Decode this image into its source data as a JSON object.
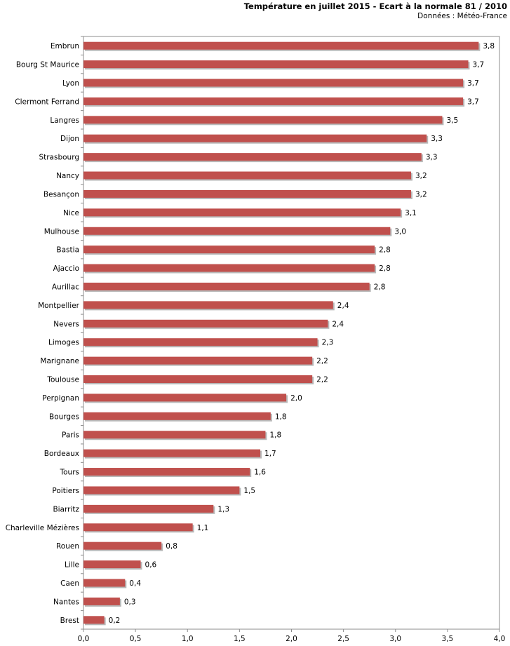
{
  "header": {
    "title": "Température en juillet 2015 - Ecart à la normale 81 / 2010",
    "subtitle": "Données : Météo-France"
  },
  "colors": {
    "bar": "#c0504d",
    "bar_shadow": "#b8b8b8",
    "axis": "#8c8c8c",
    "grid": "#d0d0d0"
  },
  "chart_data": {
    "type": "bar",
    "orientation": "horizontal",
    "title": "Température en juillet 2015 - Ecart à la normale 81 / 2010",
    "subtitle": "Données : Météo-France",
    "categories": [
      "Embrun",
      "Bourg St Maurice",
      "Lyon",
      "Clermont Ferrand",
      "Langres",
      "Dijon",
      "Strasbourg",
      "Nancy",
      "Besançon",
      "Nice",
      "Mulhouse",
      "Bastia",
      "Ajaccio",
      "Aurillac",
      "Montpellier",
      "Nevers",
      "Limoges",
      "Marignane",
      "Toulouse",
      "Perpignan",
      "Bourges",
      "Paris",
      "Bordeaux",
      "Tours",
      "Poitiers",
      "Biarritz",
      "Charleville Mézières",
      "Rouen",
      "Lille",
      "Caen",
      "Nantes",
      "Brest"
    ],
    "values": [
      3.8,
      3.7,
      3.65,
      3.65,
      3.45,
      3.3,
      3.25,
      3.15,
      3.15,
      3.05,
      2.95,
      2.8,
      2.8,
      2.75,
      2.4,
      2.35,
      2.25,
      2.2,
      2.2,
      1.95,
      1.8,
      1.75,
      1.7,
      1.6,
      1.5,
      1.25,
      1.05,
      0.75,
      0.55,
      0.4,
      0.35,
      0.2
    ],
    "value_labels": [
      "3,8",
      "3,7",
      "3,7",
      "3,7",
      "3,5",
      "3,3",
      "3,3",
      "3,2",
      "3,2",
      "3,1",
      "3,0",
      "2,8",
      "2,8",
      "2,8",
      "2,4",
      "2,4",
      "2,3",
      "2,2",
      "2,2",
      "2,0",
      "1,8",
      "1,8",
      "1,7",
      "1,6",
      "1,5",
      "1,3",
      "1,1",
      "0,8",
      "0,6",
      "0,4",
      "0,3",
      "0,2"
    ],
    "xlim": [
      0,
      4.0
    ],
    "xticks": [
      0,
      0.5,
      1.0,
      1.5,
      2.0,
      2.5,
      3.0,
      3.5,
      4.0
    ],
    "xtick_labels": [
      "0,0",
      "0,5",
      "1,0",
      "1,5",
      "2,0",
      "2,5",
      "3,0",
      "3,5",
      "4,0"
    ],
    "grid": false,
    "legend": "none"
  }
}
